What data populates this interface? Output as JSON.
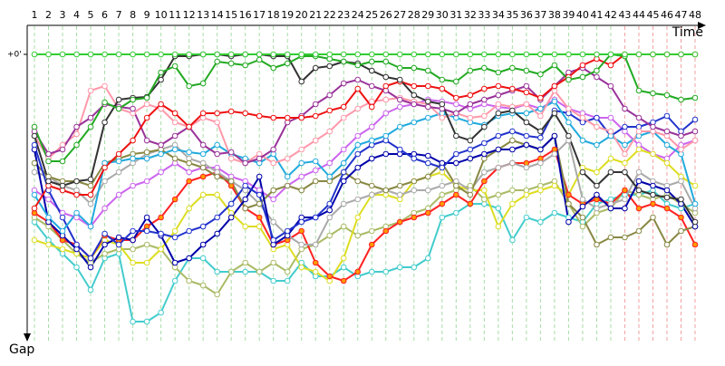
{
  "chart_data": {
    "type": "line",
    "x_label": "Time",
    "y_label": "Gap",
    "categories": [
      "1",
      "2",
      "3",
      "4",
      "5",
      "6",
      "7",
      "8",
      "9",
      "10",
      "11",
      "12",
      "13",
      "14",
      "15",
      "16",
      "17",
      "18",
      "19",
      "20",
      "21",
      "22",
      "23",
      "24",
      "25",
      "26",
      "27",
      "28",
      "29",
      "30",
      "31",
      "32",
      "33",
      "34",
      "35",
      "36",
      "37",
      "38",
      "39",
      "40",
      "41",
      "42",
      "43",
      "44",
      "45",
      "46",
      "47",
      "48"
    ],
    "ylim": [
      0,
      310
    ],
    "yticks": [
      {
        "value": 0,
        "label": "+0'"
      }
    ],
    "grid": true,
    "series": [
      {
        "color": "#33cc33",
        "values": [
          0,
          0,
          0,
          0,
          0,
          0,
          0,
          0,
          0,
          0,
          0,
          0,
          0,
          0,
          0,
          0,
          0,
          0,
          0,
          0,
          0,
          0,
          0,
          0,
          0,
          0,
          0,
          0,
          0,
          0,
          0,
          0,
          0,
          0,
          0,
          0,
          0,
          0,
          0,
          0,
          0,
          0,
          0,
          0,
          0,
          0,
          0,
          0
        ]
      },
      {
        "color": "#22aa22",
        "values": [
          80,
          118,
          118,
          100,
          80,
          53,
          60,
          50,
          48,
          20,
          13,
          35,
          32,
          8,
          10,
          12,
          6,
          15,
          10,
          2,
          2,
          5,
          8,
          12,
          8,
          8,
          15,
          15,
          18,
          28,
          30,
          18,
          15,
          20,
          15,
          18,
          22,
          12,
          28,
          25,
          18,
          0,
          2,
          40,
          43,
          45,
          50,
          48
        ]
      },
      {
        "color": "#333333",
        "values": [
          90,
          140,
          145,
          140,
          138,
          75,
          50,
          48,
          47,
          28,
          2,
          2,
          0,
          0,
          2,
          0,
          0,
          2,
          2,
          30,
          15,
          13,
          8,
          10,
          18,
          25,
          28,
          45,
          52,
          55,
          90,
          95,
          80,
          65,
          62,
          75,
          85,
          65,
          90,
          130,
          145,
          130,
          130,
          150,
          155,
          158,
          160,
          185
        ]
      },
      {
        "color": "#ee1111",
        "values": [
          170,
          145,
          150,
          155,
          155,
          125,
          110,
          95,
          70,
          55,
          65,
          80,
          65,
          65,
          63,
          65,
          68,
          70,
          70,
          70,
          68,
          62,
          58,
          38,
          58,
          35,
          30,
          35,
          35,
          38,
          48,
          45,
          38,
          35,
          38,
          42,
          48,
          35,
          25,
          12,
          5,
          12,
          0,
          0,
          0,
          0,
          0,
          0
        ]
      },
      {
        "color": "#993399",
        "values": [
          85,
          110,
          105,
          80,
          70,
          55,
          58,
          60,
          95,
          100,
          90,
          80,
          100,
          110,
          108,
          120,
          115,
          105,
          75,
          68,
          55,
          45,
          32,
          28,
          35,
          40,
          50,
          55,
          58,
          60,
          65,
          55,
          50,
          45,
          40,
          35,
          50,
          35,
          20,
          15,
          25,
          35,
          60,
          70,
          80,
          85,
          90,
          85
        ]
      },
      {
        "color": "#ff99aa",
        "values": [
          90,
          115,
          100,
          88,
          40,
          35,
          60,
          65,
          55,
          60,
          75,
          80,
          70,
          75,
          115,
          120,
          110,
          120,
          115,
          105,
          95,
          85,
          70,
          60,
          52,
          50,
          48,
          52,
          55,
          70,
          65,
          70,
          68,
          55,
          58,
          55,
          68,
          40,
          60,
          70,
          80,
          85,
          110,
          85,
          85,
          90,
          105,
          95
        ]
      },
      {
        "color": "#22aadd",
        "values": [
          155,
          180,
          195,
          175,
          190,
          120,
          118,
          115,
          115,
          110,
          105,
          108,
          110,
          100,
          110,
          115,
          120,
          110,
          135,
          120,
          118,
          135,
          120,
          100,
          95,
          90,
          80,
          75,
          70,
          65,
          70,
          75,
          78,
          68,
          65,
          65,
          60,
          52,
          75,
          95,
          100,
          90,
          100,
          90,
          85,
          100,
          110,
          165
        ]
      },
      {
        "color": "#2233cc",
        "values": [
          100,
          150,
          180,
          210,
          225,
          198,
          210,
          195,
          195,
          198,
          202,
          195,
          190,
          180,
          165,
          145,
          155,
          205,
          195,
          185,
          180,
          165,
          130,
          110,
          100,
          95,
          105,
          115,
          120,
          125,
          110,
          105,
          98,
          90,
          85,
          90,
          92,
          62,
          65,
          75,
          70,
          90,
          80,
          80,
          75,
          68,
          85,
          72
        ]
      },
      {
        "color": "#0000aa",
        "values": [
          105,
          185,
          200,
          215,
          235,
          210,
          202,
          205,
          180,
          200,
          230,
          225,
          210,
          198,
          180,
          160,
          135,
          210,
          200,
          180,
          180,
          172,
          140,
          125,
          115,
          110,
          110,
          110,
          112,
          120,
          120,
          115,
          110,
          105,
          105,
          100,
          105,
          90,
          185,
          168,
          155,
          170,
          170,
          140,
          145,
          150,
          165,
          190
        ]
      },
      {
        "color": "#888844",
        "values": [
          120,
          135,
          140,
          140,
          145,
          120,
          115,
          110,
          108,
          105,
          115,
          120,
          125,
          135,
          140,
          170,
          165,
          150,
          145,
          150,
          140,
          140,
          130,
          140,
          145,
          150,
          145,
          140,
          135,
          120,
          145,
          155,
          115,
          105,
          95,
          100,
          105,
          90,
          165,
          180,
          210,
          202,
          202,
          195,
          180,
          210,
          195,
          190
        ]
      },
      {
        "color": "#aaaaaa",
        "values": [
          130,
          135,
          145,
          150,
          165,
          140,
          130,
          120,
          110,
          105,
          100,
          115,
          120,
          130,
          140,
          150,
          165,
          185,
          200,
          210,
          210,
          180,
          165,
          160,
          155,
          150,
          155,
          150,
          150,
          145,
          140,
          150,
          130,
          125,
          120,
          125,
          120,
          110,
          95,
          160,
          170,
          165,
          160,
          130,
          140,
          145,
          140,
          170
        ]
      },
      {
        "color": "#ff2222",
        "marker_fill": "#ff9900",
        "values": [
          175,
          185,
          205,
          210,
          225,
          200,
          205,
          205,
          190,
          180,
          160,
          140,
          135,
          130,
          145,
          170,
          180,
          210,
          205,
          195,
          230,
          245,
          250,
          240,
          210,
          195,
          185,
          180,
          175,
          165,
          155,
          165,
          140,
          125,
          120,
          120,
          115,
          105,
          155,
          165,
          160,
          165,
          150,
          170,
          165,
          170,
          180,
          210
        ]
      },
      {
        "color": "#dddd22",
        "values": [
          205,
          210,
          215,
          220,
          225,
          205,
          210,
          230,
          230,
          215,
          195,
          170,
          155,
          155,
          175,
          190,
          190,
          215,
          210,
          235,
          240,
          250,
          225,
          180,
          155,
          155,
          160,
          140,
          135,
          130,
          145,
          150,
          150,
          190,
          165,
          155,
          150,
          145,
          155,
          125,
          130,
          115,
          120,
          105,
          110,
          120,
          135,
          145
        ]
      },
      {
        "color": "#cc66ee",
        "values": [
          150,
          160,
          175,
          180,
          190,
          170,
          155,
          145,
          140,
          130,
          120,
          130,
          125,
          125,
          135,
          140,
          150,
          160,
          145,
          135,
          128,
          120,
          105,
          90,
          80,
          65,
          58,
          55,
          50,
          52,
          55,
          60,
          55,
          58,
          60,
          55,
          60,
          50,
          60,
          65,
          70,
          70,
          85,
          100,
          110,
          115,
          100,
          95
        ]
      },
      {
        "color": "#aabb66",
        "values": [
          180,
          190,
          205,
          220,
          230,
          220,
          215,
          215,
          210,
          215,
          235,
          250,
          255,
          265,
          240,
          230,
          240,
          230,
          240,
          215,
          210,
          200,
          190,
          200,
          195,
          190,
          185,
          175,
          170,
          155,
          150,
          145,
          160,
          155,
          150,
          150,
          145,
          140,
          165,
          190,
          175,
          170,
          150,
          155,
          160,
          155,
          165,
          175
        ]
      },
      {
        "color": "#44cccc",
        "values": [
          185,
          205,
          220,
          235,
          260,
          225,
          220,
          295,
          295,
          285,
          250,
          225,
          225,
          240,
          240,
          240,
          240,
          250,
          250,
          230,
          245,
          245,
          235,
          245,
          240,
          240,
          235,
          235,
          225,
          180,
          175,
          165,
          165,
          170,
          205,
          180,
          185,
          175,
          180,
          185,
          165,
          160,
          155,
          155,
          150,
          165,
          170,
          165
        ]
      }
    ]
  }
}
